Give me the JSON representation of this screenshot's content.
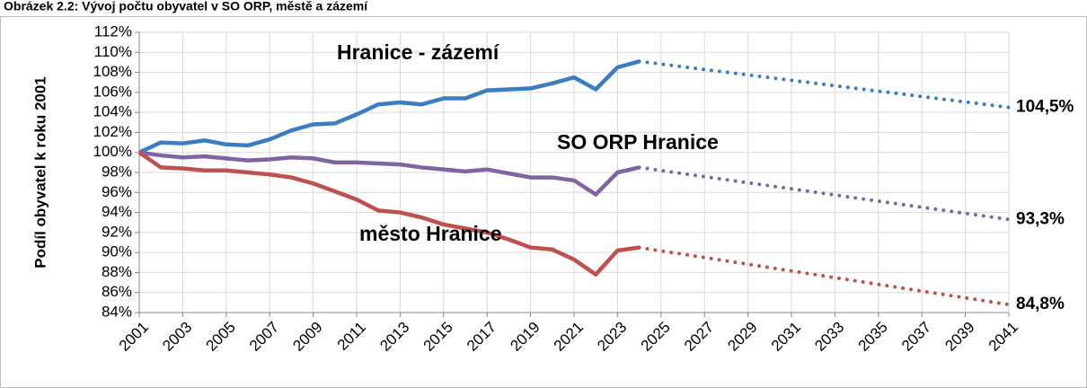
{
  "chart_data": {
    "type": "line",
    "title": "Obrázek 2.2: Vývoj počtu obyvatel v SO ORP, městě a zázemí",
    "y_label": "Podíl obyvatel k roku 2001",
    "x": [
      2001,
      2002,
      2003,
      2004,
      2005,
      2006,
      2007,
      2008,
      2009,
      2010,
      2011,
      2012,
      2013,
      2014,
      2015,
      2016,
      2017,
      2018,
      2019,
      2020,
      2021,
      2022,
      2023,
      2024
    ],
    "series": [
      {
        "name": "Hranice - zázemí",
        "color": "#3a7dc2",
        "values": [
          100,
          101.0,
          100.9,
          101.2,
          100.8,
          100.7,
          101.3,
          102.2,
          102.8,
          102.9,
          103.8,
          104.8,
          105.0,
          104.8,
          105.4,
          105.4,
          106.2,
          106.3,
          106.4,
          106.9,
          107.5,
          106.3,
          108.5,
          109.1
        ],
        "projection": {
          "x": 2041,
          "value": 104.5,
          "label": "104,5%"
        }
      },
      {
        "name": "SO ORP Hranice",
        "color": "#8064a2",
        "values": [
          100,
          99.7,
          99.5,
          99.6,
          99.4,
          99.2,
          99.3,
          99.5,
          99.4,
          99.0,
          99.0,
          98.9,
          98.8,
          98.5,
          98.3,
          98.1,
          98.3,
          97.9,
          97.5,
          97.5,
          97.2,
          95.8,
          98.0,
          98.5
        ],
        "projection": {
          "x": 2041,
          "value": 93.3,
          "label": "93,3%"
        }
      },
      {
        "name": "město Hranice",
        "color": "#c0504d",
        "values": [
          100,
          98.5,
          98.4,
          98.2,
          98.2,
          98.0,
          97.8,
          97.5,
          96.9,
          96.1,
          95.3,
          94.2,
          94.0,
          93.5,
          92.8,
          92.4,
          92.0,
          91.3,
          90.5,
          90.3,
          89.3,
          87.8,
          90.2,
          90.5
        ],
        "projection": {
          "x": 2041,
          "value": 84.8,
          "label": "84,8%"
        }
      }
    ],
    "xlim": [
      2001,
      2041
    ],
    "xticks": [
      2001,
      2003,
      2005,
      2007,
      2009,
      2011,
      2013,
      2015,
      2017,
      2019,
      2021,
      2023,
      2025,
      2027,
      2029,
      2031,
      2033,
      2035,
      2037,
      2039,
      2041
    ],
    "ylim": [
      84,
      112
    ],
    "yticks": [
      {
        "value": 84,
        "label": "84%"
      },
      {
        "value": 86,
        "label": "86%"
      },
      {
        "value": 88,
        "label": "88%"
      },
      {
        "value": 90,
        "label": "90%"
      },
      {
        "value": 92,
        "label": "92%"
      },
      {
        "value": 94,
        "label": "94%"
      },
      {
        "value": 96,
        "label": "96%"
      },
      {
        "value": 98,
        "label": "98%"
      },
      {
        "value": 100,
        "label": "100%"
      },
      {
        "value": 102,
        "label": "102%"
      },
      {
        "value": 104,
        "label": "104%"
      },
      {
        "value": 106,
        "label": "106%"
      },
      {
        "value": 108,
        "label": "108%"
      },
      {
        "value": 110,
        "label": "110%"
      },
      {
        "value": 112,
        "label": "112%"
      }
    ],
    "grid": true
  }
}
